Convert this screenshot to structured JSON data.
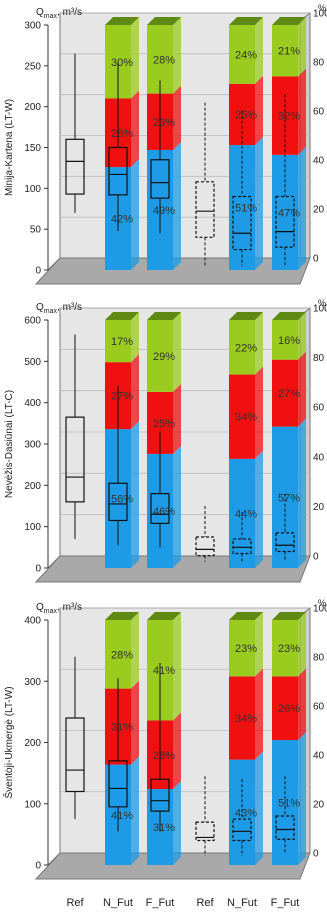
{
  "chart_data": [
    {
      "type": "box",
      "ylabel": "Minija-Kartena (LT-W)",
      "y_unit_label": "Q",
      "y_unit_sub": "max",
      "y_unit_rest": ", m³/s",
      "y_left_ticks": [
        "0",
        "50",
        "100",
        "150",
        "200",
        "250",
        "300"
      ],
      "y_left_range": [
        0,
        300
      ],
      "y_right_unit": "%",
      "y_right_ticks": [
        "0",
        "20",
        "40",
        "60",
        "80",
        "100"
      ],
      "categories": [
        "Ref",
        "N_Fut",
        "F_Fut",
        "Ref",
        "N_Fut",
        "F_Fut"
      ],
      "boxes": [
        {
          "style": "solid",
          "min": 70,
          "q1": 93,
          "median": 133,
          "q3": 160,
          "max": 265
        },
        {
          "style": "solid",
          "min": 48,
          "q1": 92,
          "median": 117,
          "q3": 150,
          "max": 255
        },
        {
          "style": "solid",
          "min": 45,
          "q1": 88,
          "median": 107,
          "q3": 135,
          "max": 232
        },
        {
          "style": "dashed",
          "min": 5,
          "q1": 40,
          "median": 72,
          "q3": 108,
          "max": 205
        },
        {
          "style": "dashed",
          "min": 5,
          "q1": 25,
          "median": 45,
          "q3": 90,
          "max": 195
        },
        {
          "style": "dashed",
          "min": 5,
          "q1": 28,
          "median": 47,
          "q3": 90,
          "max": 215
        }
      ],
      "stacked_percent": [
        {
          "category": "N_Fut",
          "blue": 42,
          "red": 28,
          "green": 30,
          "labels": [
            "42%",
            "28%",
            "30%"
          ]
        },
        {
          "category": "F_Fut",
          "blue": 49,
          "red": 23,
          "green": 28,
          "labels": [
            "49%",
            "23%",
            "28%"
          ]
        },
        {
          "category": "N_Fut",
          "blue": 51,
          "red": 25,
          "green": 24,
          "labels": [
            "51%",
            "25%",
            "24%"
          ]
        },
        {
          "category": "F_Fut",
          "blue": 47,
          "red": 32,
          "green": 21,
          "labels": [
            "47%",
            "32%",
            "21%"
          ]
        }
      ]
    },
    {
      "type": "box",
      "ylabel": "Nevėžis-Dasiūnai (LT-C)",
      "y_unit_label": "Q",
      "y_unit_sub": "max",
      "y_unit_rest": ", m³/s",
      "y_left_ticks": [
        "0",
        "100",
        "200",
        "300",
        "400",
        "500",
        "600"
      ],
      "y_left_range": [
        0,
        600
      ],
      "y_right_unit": "%",
      "y_right_ticks": [
        "0",
        "20",
        "40",
        "60",
        "80",
        "100"
      ],
      "categories": [
        "Ref",
        "N_Fut",
        "F_Fut",
        "Ref",
        "N_Fut",
        "F_Fut"
      ],
      "boxes": [
        {
          "style": "solid",
          "min": 70,
          "q1": 160,
          "median": 220,
          "q3": 365,
          "max": 565
        },
        {
          "style": "solid",
          "min": 55,
          "q1": 115,
          "median": 155,
          "q3": 205,
          "max": 440
        },
        {
          "style": "solid",
          "min": 50,
          "q1": 108,
          "median": 130,
          "q3": 180,
          "max": 330
        },
        {
          "style": "dashed",
          "min": 15,
          "q1": 30,
          "median": 45,
          "q3": 75,
          "max": 150
        },
        {
          "style": "dashed",
          "min": 15,
          "q1": 35,
          "median": 50,
          "q3": 70,
          "max": 135
        },
        {
          "style": "dashed",
          "min": 20,
          "q1": 40,
          "median": 55,
          "q3": 85,
          "max": 180
        }
      ],
      "stacked_percent": [
        {
          "category": "N_Fut",
          "blue": 56,
          "red": 27,
          "green": 17,
          "labels": [
            "56%",
            "27%",
            "17%"
          ]
        },
        {
          "category": "F_Fut",
          "blue": 46,
          "red": 25,
          "green": 29,
          "labels": [
            "46%",
            "25%",
            "29%"
          ]
        },
        {
          "category": "N_Fut",
          "blue": 44,
          "red": 34,
          "green": 22,
          "labels": [
            "44%",
            "34%",
            "22%"
          ]
        },
        {
          "category": "F_Fut",
          "blue": 57,
          "red": 27,
          "green": 16,
          "labels": [
            "57%",
            "27%",
            "16%"
          ]
        }
      ]
    },
    {
      "type": "box",
      "ylabel": "Šventoji-Ukmergė (LT-W)",
      "y_unit_label": "Q",
      "y_unit_sub": "max",
      "y_unit_rest": ", m³/s",
      "y_left_ticks": [
        "0",
        "100",
        "200",
        "300",
        "400"
      ],
      "y_left_range": [
        0,
        400
      ],
      "y_right_unit": "%",
      "y_right_ticks": [
        "0",
        "20",
        "40",
        "60",
        "80",
        "100"
      ],
      "categories": [
        "Ref",
        "N_Fut",
        "F_Fut",
        "Ref",
        "N_Fut",
        "F_Fut"
      ],
      "boxes": [
        {
          "style": "solid",
          "min": 75,
          "q1": 120,
          "median": 155,
          "q3": 240,
          "max": 340
        },
        {
          "style": "solid",
          "min": 55,
          "q1": 95,
          "median": 125,
          "q3": 170,
          "max": 305
        },
        {
          "style": "solid",
          "min": 55,
          "q1": 88,
          "median": 105,
          "q3": 140,
          "max": 330
        },
        {
          "style": "dashed",
          "min": 15,
          "q1": 40,
          "median": 45,
          "q3": 70,
          "max": 145
        },
        {
          "style": "dashed",
          "min": 15,
          "q1": 40,
          "median": 55,
          "q3": 75,
          "max": 140
        },
        {
          "style": "dashed",
          "min": 20,
          "q1": 42,
          "median": 58,
          "q3": 80,
          "max": 145
        }
      ],
      "stacked_percent": [
        {
          "category": "N_Fut",
          "blue": 41,
          "red": 31,
          "green": 28,
          "labels": [
            "41%",
            "31%",
            "28%"
          ]
        },
        {
          "category": "F_Fut",
          "blue": 31,
          "red": 28,
          "green": 41,
          "labels": [
            "31%",
            "28%",
            "41%"
          ]
        },
        {
          "category": "N_Fut",
          "blue": 43,
          "red": 34,
          "green": 23,
          "labels": [
            "43%",
            "34%",
            "23%"
          ]
        },
        {
          "category": "F_Fut",
          "blue": 51,
          "red": 26,
          "green": 23,
          "labels": [
            "51%",
            "26%",
            "23%"
          ]
        }
      ]
    }
  ],
  "colors": {
    "blue": "#1e9be6",
    "red": "#f01010",
    "green": "#99cc1e",
    "floor": "#a9a9a9",
    "panel": "#e6e6e6",
    "bar_top": "#5e8a14"
  }
}
